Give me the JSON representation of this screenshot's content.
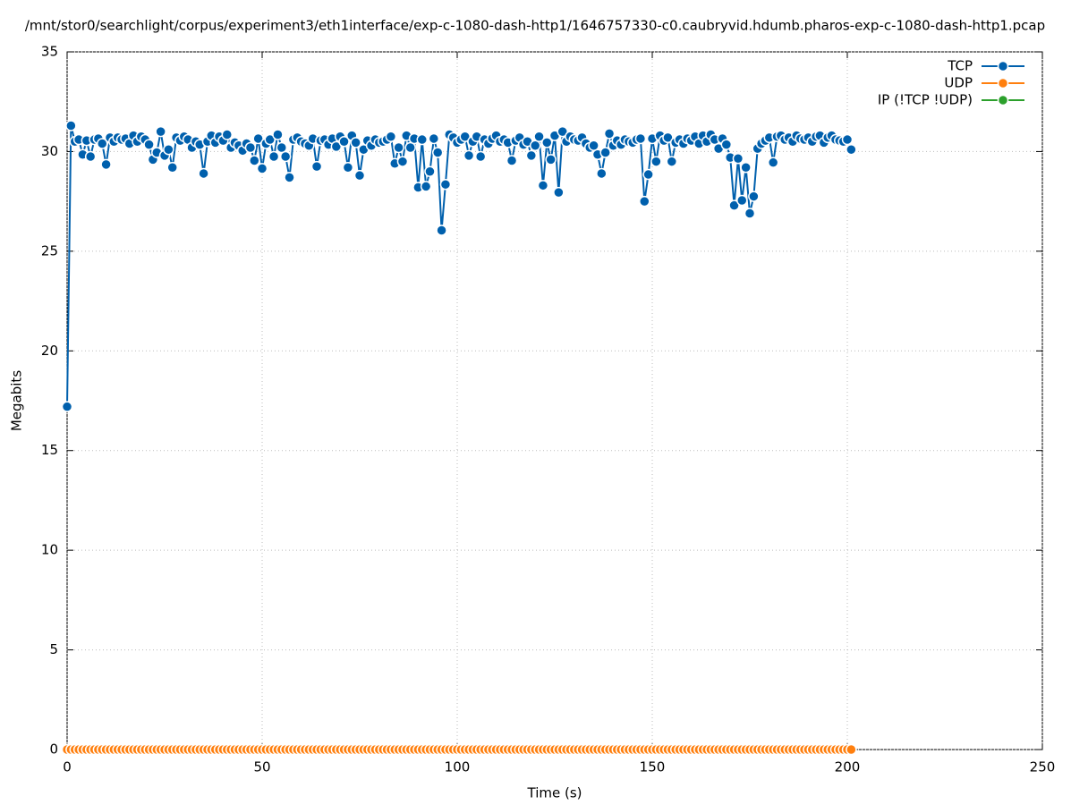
{
  "chart_data": {
    "type": "line",
    "title": "/mnt/stor0/searchlight/corpus/experiment3/eth1interface/exp-c-1080-dash-http1/1646757330-c0.caubryvid.hdumb.pharos-exp-c-1080-dash-http1.pcap",
    "x_label": "Time (s)",
    "y_label": "Megabits",
    "xlim": [
      0,
      250
    ],
    "xticks": [
      0,
      50,
      100,
      150,
      200,
      250
    ],
    "ylim": [
      0,
      35
    ],
    "yticks": [
      0,
      5,
      10,
      15,
      20,
      25,
      30,
      35
    ],
    "grid": true,
    "legend": "top-right",
    "x": [
      0,
      1,
      2,
      3,
      4,
      5,
      6,
      7,
      8,
      9,
      10,
      11,
      12,
      13,
      14,
      15,
      16,
      17,
      18,
      19,
      20,
      21,
      22,
      23,
      24,
      25,
      26,
      27,
      28,
      29,
      30,
      31,
      32,
      33,
      34,
      35,
      36,
      37,
      38,
      39,
      40,
      41,
      42,
      43,
      44,
      45,
      46,
      47,
      48,
      49,
      50,
      51,
      52,
      53,
      54,
      55,
      56,
      57,
      58,
      59,
      60,
      61,
      62,
      63,
      64,
      65,
      66,
      67,
      68,
      69,
      70,
      71,
      72,
      73,
      74,
      75,
      76,
      77,
      78,
      79,
      80,
      81,
      82,
      83,
      84,
      85,
      86,
      87,
      88,
      89,
      90,
      91,
      92,
      93,
      94,
      95,
      96,
      97,
      98,
      99,
      100,
      101,
      102,
      103,
      104,
      105,
      106,
      107,
      108,
      109,
      110,
      111,
      112,
      113,
      114,
      115,
      116,
      117,
      118,
      119,
      120,
      121,
      122,
      123,
      124,
      125,
      126,
      127,
      128,
      129,
      130,
      131,
      132,
      133,
      134,
      135,
      136,
      137,
      138,
      139,
      140,
      141,
      142,
      143,
      144,
      145,
      146,
      147,
      148,
      149,
      150,
      151,
      152,
      153,
      154,
      155,
      156,
      157,
      158,
      159,
      160,
      161,
      162,
      163,
      164,
      165,
      166,
      167,
      168,
      169,
      170,
      171,
      172,
      173,
      174,
      175,
      176,
      177,
      178,
      179,
      180,
      181,
      182,
      183,
      184,
      185,
      186,
      187,
      188,
      189,
      190,
      191,
      192,
      193,
      194,
      195,
      196,
      197,
      198,
      199,
      200,
      201
    ],
    "series": [
      {
        "name": "TCP",
        "color": "#0060ad",
        "values": [
          17.2,
          31.3,
          30.5,
          30.6,
          29.85,
          30.55,
          29.75,
          30.6,
          30.65,
          30.4,
          29.35,
          30.7,
          30.5,
          30.7,
          30.6,
          30.65,
          30.4,
          30.8,
          30.5,
          30.75,
          30.6,
          30.35,
          29.6,
          29.95,
          31.0,
          29.8,
          30.1,
          29.2,
          30.7,
          30.55,
          30.75,
          30.6,
          30.2,
          30.5,
          30.35,
          28.9,
          30.5,
          30.8,
          30.45,
          30.75,
          30.55,
          30.85,
          30.2,
          30.45,
          30.3,
          30.05,
          30.4,
          30.2,
          29.55,
          30.65,
          29.15,
          30.4,
          30.6,
          29.75,
          30.85,
          30.2,
          29.75,
          28.7,
          30.6,
          30.7,
          30.5,
          30.4,
          30.3,
          30.65,
          29.25,
          30.55,
          30.6,
          30.35,
          30.65,
          30.25,
          30.75,
          30.5,
          29.2,
          30.8,
          30.45,
          28.8,
          30.1,
          30.55,
          30.3,
          30.6,
          30.45,
          30.5,
          30.6,
          30.75,
          29.4,
          30.2,
          29.5,
          30.8,
          30.2,
          30.65,
          28.2,
          30.6,
          28.25,
          29.0,
          30.65,
          29.95,
          26.05,
          28.35,
          30.85,
          30.7,
          30.45,
          30.6,
          30.75,
          29.8,
          30.5,
          30.75,
          29.75,
          30.6,
          30.4,
          30.65,
          30.8,
          30.5,
          30.6,
          30.45,
          29.55,
          30.55,
          30.7,
          30.35,
          30.5,
          29.8,
          30.3,
          30.75,
          28.3,
          30.45,
          29.6,
          30.8,
          27.95,
          31.0,
          30.5,
          30.75,
          30.6,
          30.55,
          30.7,
          30.4,
          30.2,
          30.3,
          29.85,
          28.9,
          29.95,
          30.9,
          30.3,
          30.55,
          30.35,
          30.6,
          30.5,
          30.45,
          30.6,
          30.65,
          27.5,
          28.85,
          30.65,
          29.5,
          30.8,
          30.55,
          30.7,
          29.5,
          30.45,
          30.6,
          30.4,
          30.65,
          30.55,
          30.75,
          30.4,
          30.8,
          30.5,
          30.85,
          30.6,
          30.15,
          30.65,
          30.35,
          29.7,
          27.3,
          29.65,
          27.55,
          29.2,
          26.9,
          27.75,
          30.15,
          30.4,
          30.55,
          30.7,
          29.45,
          30.75,
          30.8,
          30.6,
          30.7,
          30.5,
          30.8,
          30.65,
          30.6,
          30.7,
          30.5,
          30.75,
          30.8,
          30.45,
          30.7,
          30.8,
          30.6,
          30.55,
          30.5,
          30.6,
          30.1
        ]
      },
      {
        "name": "UDP",
        "color": "#ff7f0e",
        "values": [
          0,
          0,
          0,
          0,
          0,
          0,
          0,
          0,
          0,
          0,
          0,
          0,
          0,
          0,
          0,
          0,
          0,
          0,
          0,
          0,
          0,
          0,
          0,
          0,
          0,
          0,
          0,
          0,
          0,
          0,
          0,
          0,
          0,
          0,
          0,
          0,
          0,
          0,
          0,
          0,
          0,
          0,
          0,
          0,
          0,
          0,
          0,
          0,
          0,
          0,
          0,
          0,
          0,
          0,
          0,
          0,
          0,
          0,
          0,
          0,
          0,
          0,
          0,
          0,
          0,
          0,
          0,
          0,
          0,
          0,
          0,
          0,
          0,
          0,
          0,
          0,
          0,
          0,
          0,
          0,
          0,
          0,
          0,
          0,
          0,
          0,
          0,
          0,
          0,
          0,
          0,
          0,
          0,
          0,
          0,
          0,
          0,
          0,
          0,
          0,
          0,
          0,
          0,
          0,
          0,
          0,
          0,
          0,
          0,
          0,
          0,
          0,
          0,
          0,
          0,
          0,
          0,
          0,
          0,
          0,
          0,
          0,
          0,
          0,
          0,
          0,
          0,
          0,
          0,
          0,
          0,
          0,
          0,
          0,
          0,
          0,
          0,
          0,
          0,
          0,
          0,
          0,
          0,
          0,
          0,
          0,
          0,
          0,
          0,
          0,
          0,
          0,
          0,
          0,
          0,
          0,
          0,
          0,
          0,
          0,
          0,
          0,
          0,
          0,
          0,
          0,
          0,
          0,
          0,
          0,
          0,
          0,
          0,
          0,
          0,
          0,
          0,
          0,
          0,
          0,
          0,
          0,
          0,
          0,
          0,
          0,
          0,
          0,
          0,
          0,
          0,
          0,
          0,
          0,
          0,
          0,
          0,
          0,
          0,
          0,
          0,
          0
        ]
      },
      {
        "name": "IP (!TCP  !UDP)",
        "color": "#2ca02c",
        "values": [
          0,
          0,
          0,
          0,
          0,
          0,
          0,
          0,
          0,
          0,
          0,
          0,
          0,
          0,
          0,
          0,
          0,
          0,
          0,
          0,
          0,
          0,
          0,
          0,
          0,
          0,
          0,
          0,
          0,
          0,
          0,
          0,
          0,
          0,
          0,
          0,
          0,
          0,
          0,
          0,
          0,
          0,
          0,
          0,
          0,
          0,
          0,
          0,
          0,
          0,
          0,
          0,
          0,
          0,
          0,
          0,
          0,
          0,
          0,
          0,
          0,
          0,
          0,
          0,
          0,
          0,
          0,
          0,
          0,
          0,
          0,
          0,
          0,
          0,
          0,
          0,
          0,
          0,
          0,
          0,
          0,
          0,
          0,
          0,
          0,
          0,
          0,
          0,
          0,
          0,
          0,
          0,
          0,
          0,
          0,
          0,
          0,
          0,
          0,
          0,
          0,
          0,
          0,
          0,
          0,
          0,
          0,
          0,
          0,
          0,
          0,
          0,
          0,
          0,
          0,
          0,
          0,
          0,
          0,
          0,
          0,
          0,
          0,
          0,
          0,
          0,
          0,
          0,
          0,
          0,
          0,
          0,
          0,
          0,
          0,
          0,
          0,
          0,
          0,
          0,
          0,
          0,
          0,
          0,
          0,
          0,
          0,
          0,
          0,
          0,
          0,
          0,
          0,
          0,
          0,
          0,
          0,
          0,
          0,
          0,
          0,
          0,
          0,
          0,
          0,
          0,
          0,
          0,
          0,
          0,
          0,
          0,
          0,
          0,
          0,
          0,
          0,
          0,
          0,
          0,
          0,
          0,
          0,
          0,
          0,
          0,
          0,
          0,
          0,
          0,
          0,
          0,
          0,
          0,
          0,
          0,
          0,
          0,
          0,
          0,
          0,
          0
        ]
      }
    ]
  }
}
